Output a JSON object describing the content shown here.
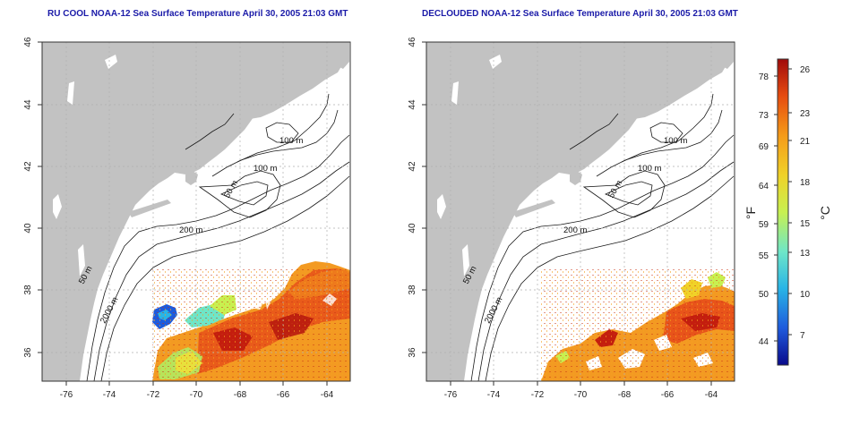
{
  "panels": [
    {
      "title": "RU COOL NOAA-12 Sea Surface Temperature April 30, 2005 21:03 GMT",
      "x_ticks": [
        "-76",
        "-74",
        "-72",
        "-70",
        "-68",
        "-66",
        "-64"
      ],
      "y_ticks": [
        "46",
        "44",
        "42",
        "40",
        "38",
        "36"
      ],
      "contour_labels": [
        "100 m",
        "100 m",
        "50 m",
        "200 m",
        "50 m",
        "2000 m"
      ]
    },
    {
      "title": "DECLOUDED NOAA-12 Sea Surface Temperature April 30, 2005 21:03 GMT",
      "x_ticks": [
        "-76",
        "-74",
        "-72",
        "-70",
        "-68",
        "-66",
        "-64"
      ],
      "y_ticks": [
        "46",
        "44",
        "42",
        "40",
        "38",
        "36"
      ],
      "contour_labels": [
        "100 m",
        "100 m",
        "50 m",
        "200 m",
        "50 m",
        "2000 m"
      ]
    }
  ],
  "colorbar": {
    "fahrenheit_label": "°F",
    "celsius_label": "°C",
    "fahrenheit_ticks": [
      "78",
      "73",
      "69",
      "64",
      "59",
      "55",
      "50",
      "44"
    ],
    "celsius_ticks": [
      "26",
      "23",
      "21",
      "18",
      "15",
      "13",
      "10",
      "7"
    ],
    "colors": [
      "#0a0a8c",
      "#1e5adc",
      "#28b4e6",
      "#6ee6c8",
      "#c8f050",
      "#f0d228",
      "#f59b19",
      "#e64b0f",
      "#a00a0a"
    ]
  }
}
